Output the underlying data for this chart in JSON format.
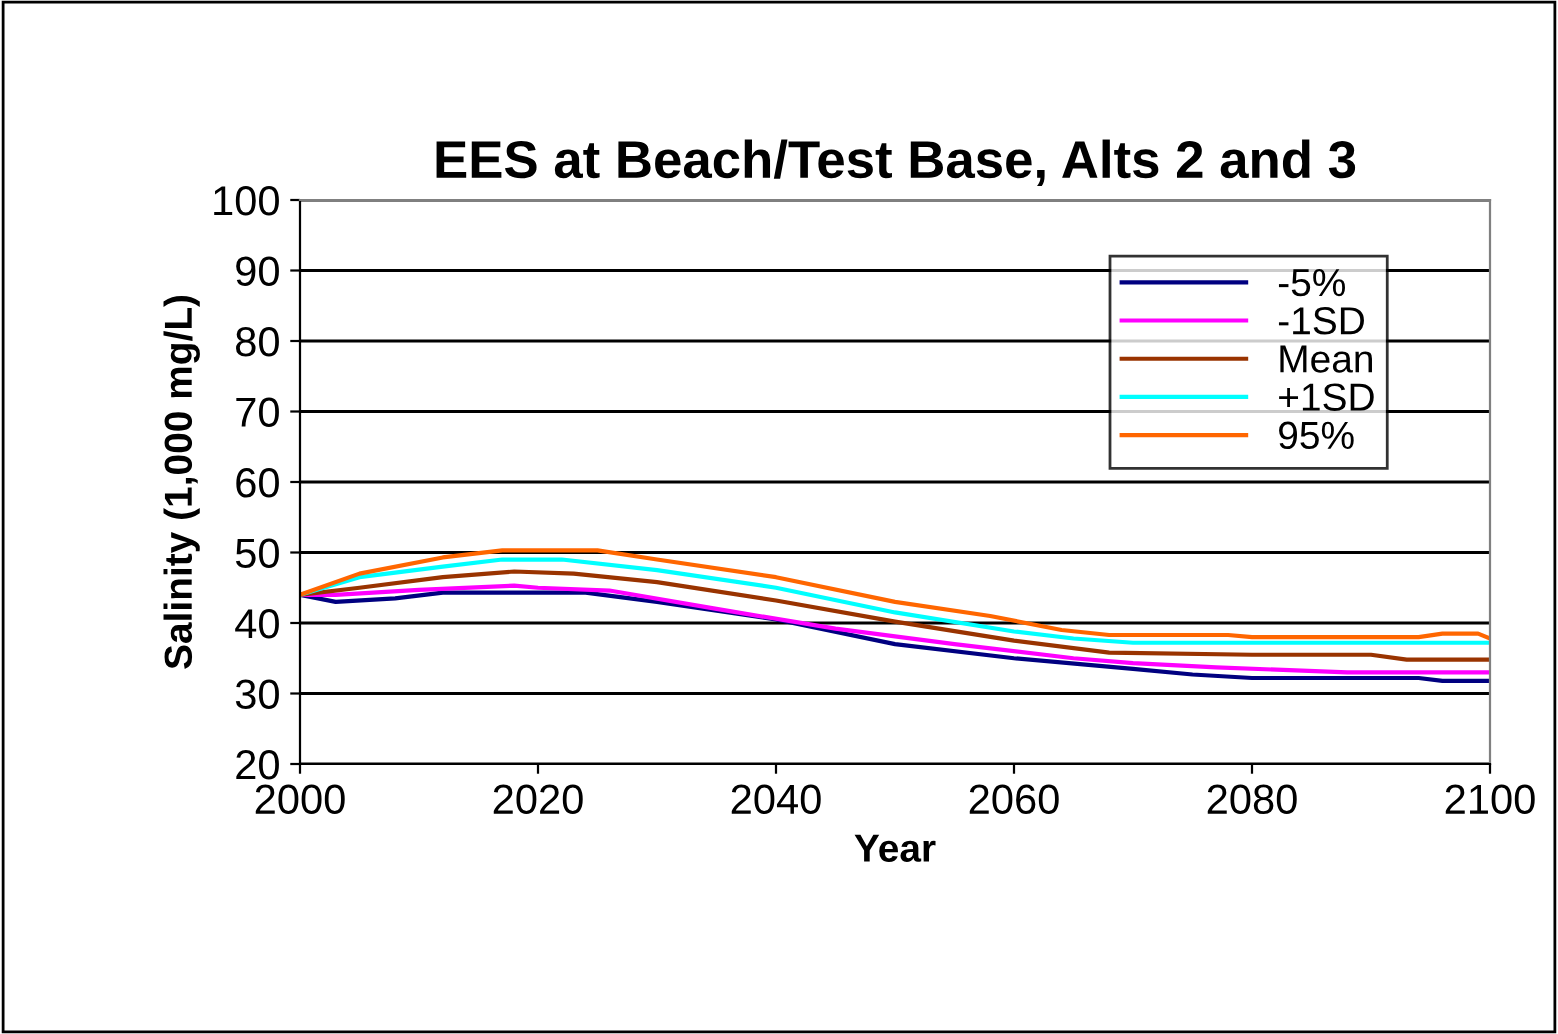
{
  "chart_data": {
    "type": "line",
    "title": "EES at Beach/Test Base, Alts 2 and 3",
    "xlabel": "Year",
    "ylabel": "Salinity (1,000 mg/L)",
    "xlim": [
      2000,
      2100
    ],
    "xticks": [
      2000,
      2020,
      2040,
      2060,
      2080,
      2100
    ],
    "ylim": [
      20,
      100
    ],
    "yticks": [
      20,
      30,
      40,
      50,
      60,
      70,
      80,
      90,
      100
    ],
    "grid": "y",
    "legend": "top right",
    "marker": "none",
    "line_style": "solid",
    "series": [
      {
        "name": "-5%",
        "color": "#000080",
        "x": [
          2000,
          2003,
          2008,
          2012,
          2024,
          2030,
          2040,
          2050,
          2060,
          2070,
          2075,
          2080,
          2094,
          2096,
          2100
        ],
        "values": [
          44,
          43,
          43.5,
          44.3,
          44.3,
          43,
          40.5,
          37,
          35,
          33.5,
          32.7,
          32.2,
          32.2,
          31.8,
          31.8
        ]
      },
      {
        "name": "-1SD",
        "color": "#ff00ff",
        "x": [
          2000,
          2003,
          2010,
          2018,
          2020,
          2026,
          2035,
          2045,
          2055,
          2065,
          2070,
          2077,
          2088,
          2100
        ],
        "values": [
          44,
          44,
          44.7,
          45.3,
          45,
          44.6,
          42,
          39.2,
          37,
          35,
          34.3,
          33.7,
          33,
          33
        ]
      },
      {
        "name": "Mean",
        "color": "#993300",
        "x": [
          2000,
          2005,
          2012,
          2018,
          2023,
          2030,
          2040,
          2050,
          2060,
          2068,
          2080,
          2090,
          2093,
          2100
        ],
        "values": [
          44,
          45,
          46.5,
          47.3,
          47,
          45.8,
          43.2,
          40.2,
          37.5,
          35.8,
          35.5,
          35.5,
          34.8,
          34.8
        ]
      },
      {
        "name": "+1SD",
        "color": "#00ffff",
        "x": [
          2000,
          2005,
          2012,
          2017,
          2022,
          2030,
          2040,
          2050,
          2060,
          2065,
          2070,
          2100
        ],
        "values": [
          44,
          46.5,
          48,
          49,
          49,
          47.5,
          45,
          41.5,
          38.8,
          37.8,
          37.2,
          37.2
        ]
      },
      {
        "name": "95%",
        "color": "#ff6600",
        "x": [
          2000,
          2005,
          2012,
          2017,
          2025,
          2030,
          2040,
          2050,
          2058,
          2064,
          2068,
          2078,
          2080,
          2094,
          2096,
          2099,
          2100
        ],
        "values": [
          44,
          47,
          49.3,
          50.3,
          50.3,
          49,
          46.5,
          43,
          41,
          39,
          38.3,
          38.3,
          38,
          38,
          38.5,
          38.5,
          37.8
        ]
      }
    ]
  }
}
